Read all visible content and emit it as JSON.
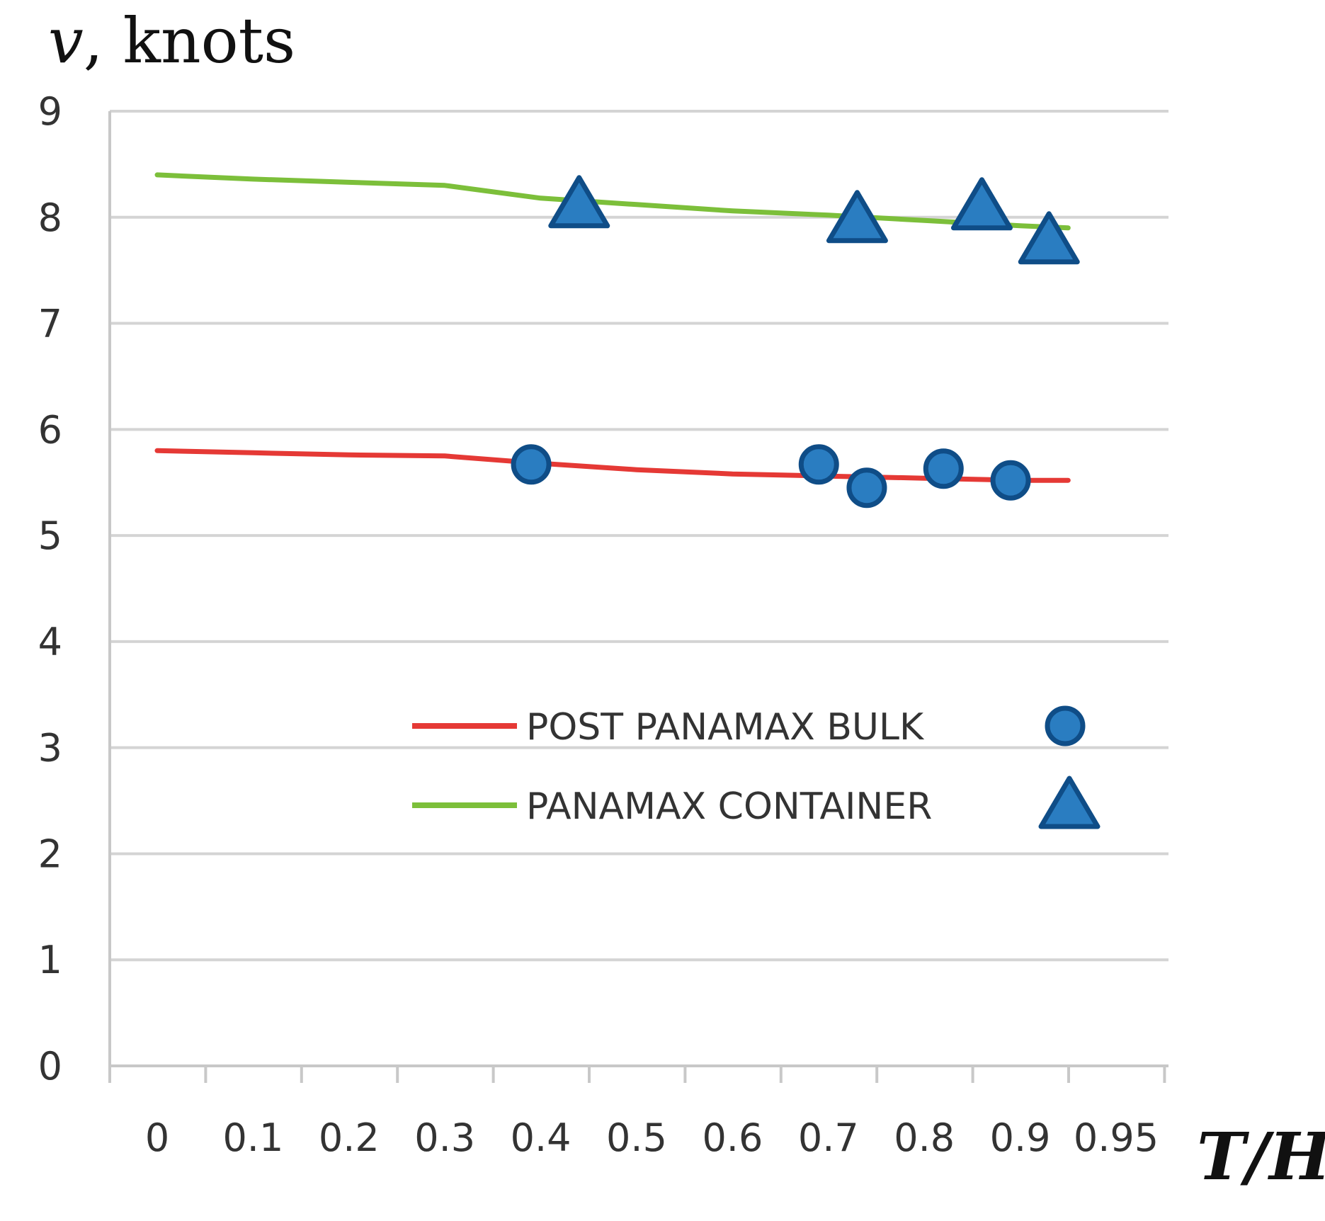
{
  "chart_data": {
    "type": "line",
    "title": "",
    "ylabel_var": "v",
    "ylabel_rest": ", knots",
    "xlabel": "T/H",
    "categories": [
      "0",
      "0.1",
      "0.2",
      "0.3",
      "0.4",
      "0.5",
      "0.6",
      "0.7",
      "0.8",
      "0.9",
      "0.95"
    ],
    "y_ticks": [
      0,
      1,
      2,
      3,
      4,
      5,
      6,
      7,
      8,
      9
    ],
    "ylim": [
      0,
      9
    ],
    "grid": true,
    "legend_position": "center-right",
    "series": [
      {
        "name": "POST PANAMAX BULK",
        "line_color": "#e53935",
        "marker": "circle",
        "marker_color": "#1f6bb0",
        "line": [
          {
            "x": 0,
            "y": 5.8
          },
          {
            "x": 0.1,
            "y": 5.78
          },
          {
            "x": 0.2,
            "y": 5.76
          },
          {
            "x": 0.3,
            "y": 5.75
          },
          {
            "x": 0.4,
            "y": 5.68
          },
          {
            "x": 0.5,
            "y": 5.62
          },
          {
            "x": 0.6,
            "y": 5.58
          },
          {
            "x": 0.7,
            "y": 5.56
          },
          {
            "x": 0.8,
            "y": 5.54
          },
          {
            "x": 0.9,
            "y": 5.52
          },
          {
            "x": 0.95,
            "y": 5.52
          }
        ],
        "markers": [
          {
            "x": 0.39,
            "y": 5.67
          },
          {
            "x": 0.69,
            "y": 5.67
          },
          {
            "x": 0.74,
            "y": 5.45
          },
          {
            "x": 0.82,
            "y": 5.63
          },
          {
            "x": 0.89,
            "y": 5.52
          }
        ]
      },
      {
        "name": "PANAMAX CONTAINER",
        "line_color": "#7cbf3a",
        "marker": "triangle",
        "marker_color": "#1f6bb0",
        "line": [
          {
            "x": 0,
            "y": 8.4
          },
          {
            "x": 0.1,
            "y": 8.36
          },
          {
            "x": 0.2,
            "y": 8.33
          },
          {
            "x": 0.3,
            "y": 8.3
          },
          {
            "x": 0.4,
            "y": 8.18
          },
          {
            "x": 0.5,
            "y": 8.12
          },
          {
            "x": 0.6,
            "y": 8.06
          },
          {
            "x": 0.7,
            "y": 8.02
          },
          {
            "x": 0.8,
            "y": 7.97
          },
          {
            "x": 0.9,
            "y": 7.92
          },
          {
            "x": 0.95,
            "y": 7.9
          }
        ],
        "markers": [
          {
            "x": 0.44,
            "y": 8.12
          },
          {
            "x": 0.73,
            "y": 7.98
          },
          {
            "x": 0.86,
            "y": 8.1
          },
          {
            "x": 0.93,
            "y": 7.78
          }
        ]
      }
    ]
  }
}
